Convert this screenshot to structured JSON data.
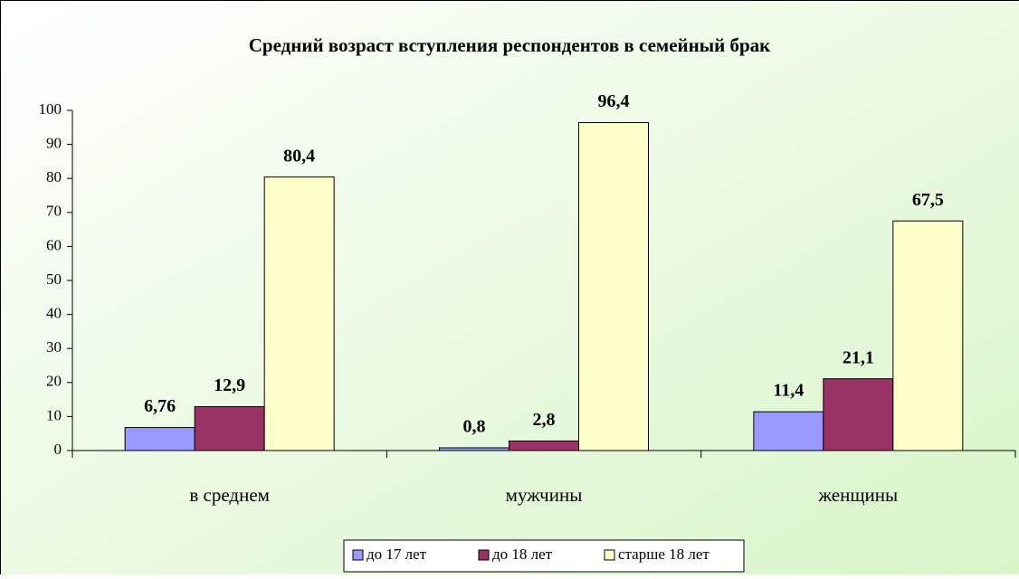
{
  "chart_data": {
    "type": "bar",
    "title": "Средний возраст вступления респондентов в семейный брак",
    "categories": [
      "в  среднем",
      "мужчины",
      "женщины"
    ],
    "series": [
      {
        "name": "до 17 лет",
        "color": "#9999ff",
        "values": [
          6.76,
          0.8,
          11.4
        ],
        "value_labels": [
          "6,76",
          "0,8",
          "11,4"
        ]
      },
      {
        "name": "до 18 лет",
        "color": "#993366",
        "values": [
          12.9,
          2.8,
          21.1
        ],
        "value_labels": [
          "12,9",
          "2,8",
          "21,1"
        ]
      },
      {
        "name": "старше 18 лет",
        "color": "#ffffcc",
        "values": [
          80.4,
          96.4,
          67.5
        ],
        "value_labels": [
          "80,4",
          "96,4",
          "67,5"
        ]
      }
    ],
    "ylim": [
      0,
      100
    ],
    "yticks": [
      0,
      10,
      20,
      30,
      40,
      50,
      60,
      70,
      80,
      90,
      100
    ],
    "legend": "bottom"
  }
}
